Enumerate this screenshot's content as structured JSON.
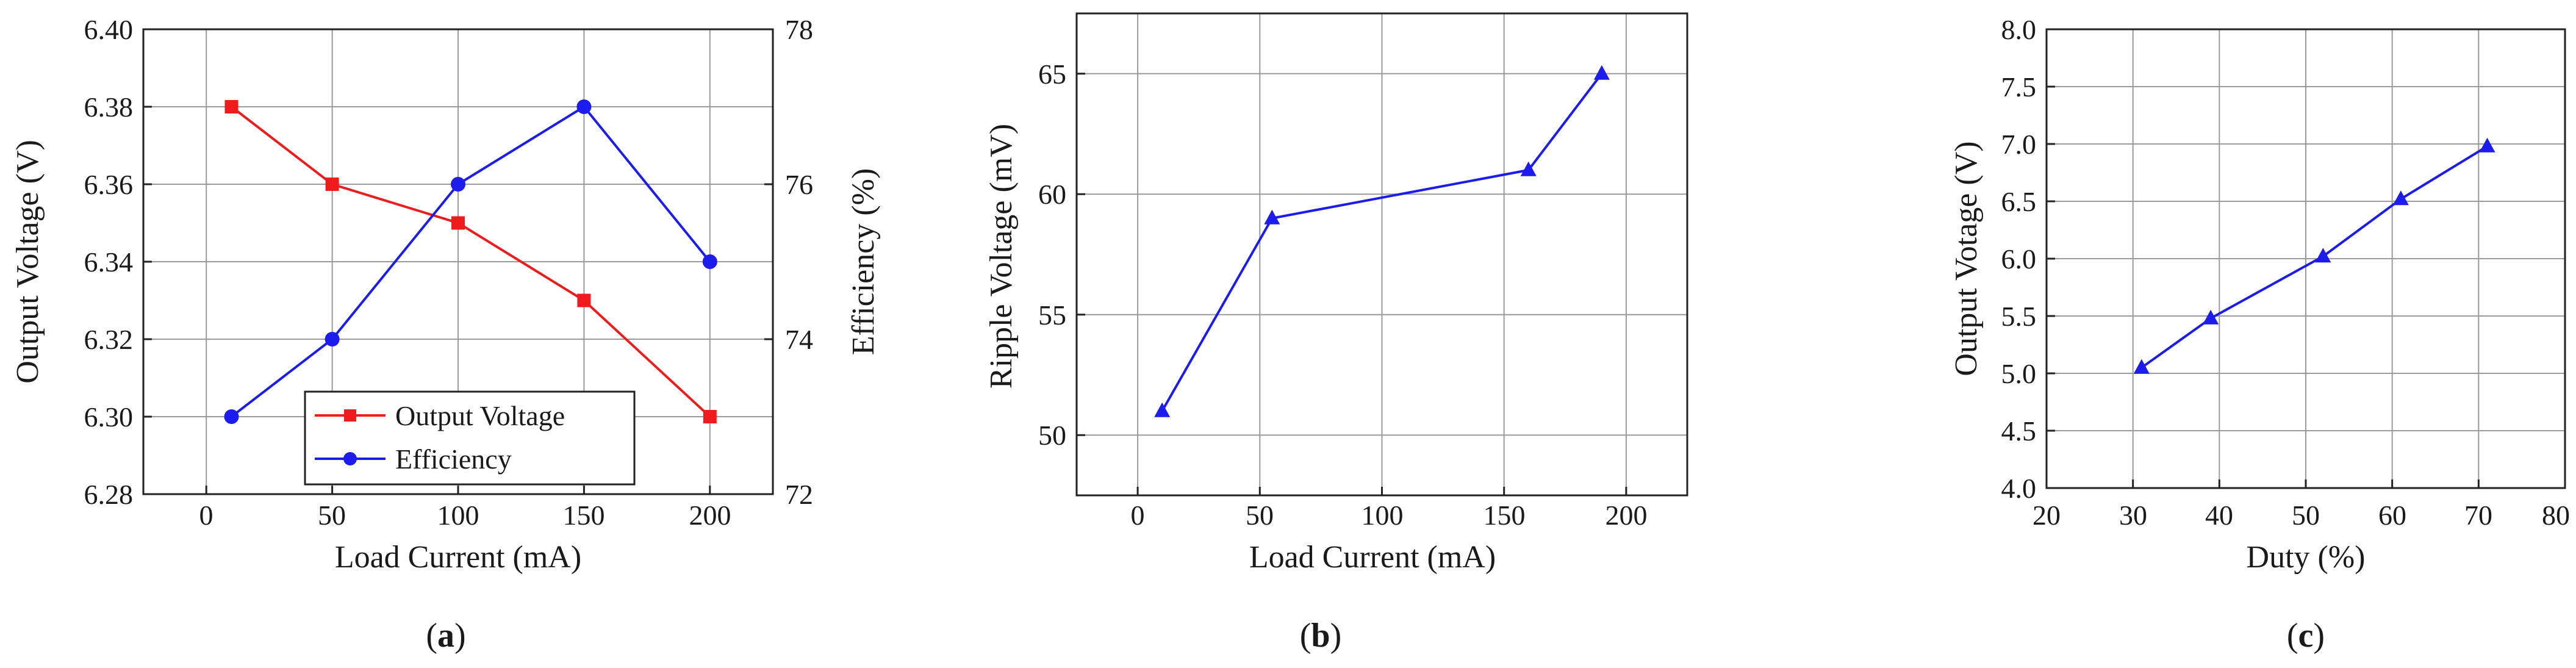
{
  "chart_data": [
    {
      "type": "line",
      "panel_label": {
        "prefix": "(",
        "letter": "a",
        "suffix": ")"
      },
      "xlabel": "Load Current (mA)",
      "ylabel_left": "Output Voltage (V)",
      "ylabel_right": "Efficiency (%)",
      "xlim": [
        -25,
        225
      ],
      "ylim_left": [
        6.28,
        6.4
      ],
      "ylim_right": [
        72,
        78
      ],
      "x_ticks": [
        "0",
        "50",
        "100",
        "150",
        "200"
      ],
      "y_ticks_left": [
        "6.28",
        "6.30",
        "6.32",
        "6.34",
        "6.36",
        "6.38",
        "6.40"
      ],
      "y_ticks_right": [
        "72",
        "74",
        "76",
        "78"
      ],
      "grid": true,
      "legend_position": "bottom-right",
      "series": [
        {
          "name": "Output Voltage",
          "axis": "left",
          "marker": "square",
          "color": "#ee1c1c",
          "x": [
            10,
            50,
            100,
            150,
            200
          ],
          "values": [
            6.38,
            6.36,
            6.35,
            6.33,
            6.3
          ]
        },
        {
          "name": "Efficiency",
          "axis": "right",
          "marker": "circle",
          "color": "#1c1cee",
          "x": [
            10,
            50,
            100,
            150,
            200
          ],
          "values": [
            73,
            74,
            76,
            77,
            75
          ]
        }
      ]
    },
    {
      "type": "line",
      "panel_label": {
        "prefix": "(",
        "letter": "b",
        "suffix": ")"
      },
      "xlabel": "Load Current (mA)",
      "ylabel": "Ripple Voltage (mV)",
      "xlim": [
        -25,
        225
      ],
      "ylim": [
        47.5,
        67.5
      ],
      "x_ticks": [
        "0",
        "50",
        "100",
        "150",
        "200"
      ],
      "y_ticks": [
        "50",
        "55",
        "60",
        "65"
      ],
      "grid": true,
      "series": [
        {
          "name": "Ripple Voltage",
          "marker": "triangle",
          "color": "#1c1cee",
          "x": [
            10,
            55,
            160,
            190
          ],
          "values": [
            51,
            59,
            61,
            65
          ]
        }
      ]
    },
    {
      "type": "line",
      "panel_label": {
        "prefix": "(",
        "letter": "c",
        "suffix": ")"
      },
      "xlabel": "Duty (%)",
      "ylabel": "Output Votage (V)",
      "xlim": [
        20,
        80
      ],
      "ylim": [
        4.0,
        8.0
      ],
      "x_ticks": [
        "20",
        "30",
        "40",
        "50",
        "60",
        "70",
        "80"
      ],
      "y_ticks": [
        "4.0",
        "4.5",
        "5.0",
        "5.5",
        "6.0",
        "6.5",
        "7.0",
        "7.5",
        "8.0"
      ],
      "grid": true,
      "series": [
        {
          "name": "Output Voltage",
          "marker": "triangle",
          "color": "#1c1cee",
          "x": [
            31,
            39,
            52,
            61,
            71
          ],
          "values": [
            5.05,
            5.48,
            6.02,
            6.52,
            6.98
          ]
        }
      ]
    }
  ]
}
